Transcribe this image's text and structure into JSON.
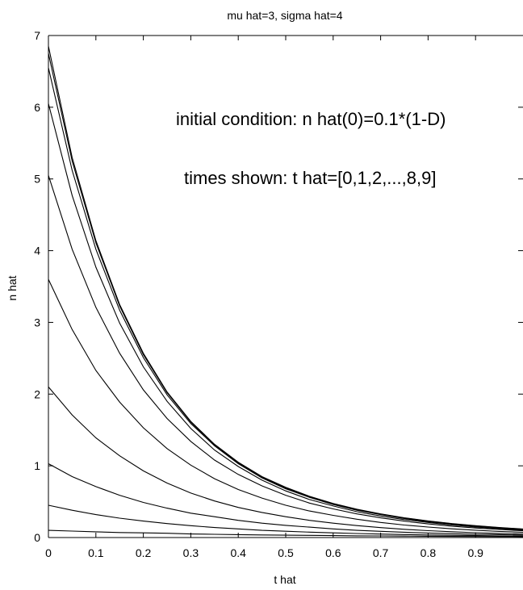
{
  "chart_data": {
    "type": "line",
    "title": "mu hat=3, sigma hat=4",
    "xlabel": "t hat",
    "ylabel": "n hat",
    "xlim": [
      0,
      1
    ],
    "ylim": [
      0,
      7
    ],
    "xticks": [
      "0",
      "0.1",
      "0.2",
      "0.3",
      "0.4",
      "0.5",
      "0.6",
      "0.7",
      "0.8",
      "0.9"
    ],
    "yticks": [
      "0",
      "1",
      "2",
      "3",
      "4",
      "5",
      "6",
      "7"
    ],
    "grid": false,
    "annotations": [
      "initial  condition: n hat(0)=0.1*(1-D)",
      "times shown: t hat=[0,1,2,...,8,9]"
    ],
    "x": [
      0,
      0.05,
      0.1,
      0.15,
      0.2,
      0.25,
      0.3,
      0.35,
      0.4,
      0.45,
      0.5,
      0.55,
      0.6,
      0.65,
      0.7,
      0.75,
      0.8,
      0.85,
      0.9,
      0.95,
      1.0
    ],
    "series": [
      {
        "values": [
          0.1,
          0.09,
          0.08,
          0.07,
          0.065,
          0.06,
          0.05,
          0.045,
          0.04,
          0.036,
          0.033,
          0.03,
          0.027,
          0.024,
          0.022,
          0.02,
          0.018,
          0.016,
          0.015,
          0.013,
          0.012
        ]
      },
      {
        "values": [
          0.45,
          0.38,
          0.32,
          0.27,
          0.23,
          0.195,
          0.165,
          0.14,
          0.12,
          0.1,
          0.088,
          0.075,
          0.065,
          0.056,
          0.048,
          0.042,
          0.036,
          0.031,
          0.027,
          0.023,
          0.02
        ]
      },
      {
        "values": [
          1.03,
          0.85,
          0.71,
          0.59,
          0.49,
          0.41,
          0.34,
          0.29,
          0.24,
          0.2,
          0.17,
          0.145,
          0.12,
          0.1,
          0.087,
          0.074,
          0.063,
          0.054,
          0.046,
          0.04,
          0.034
        ]
      },
      {
        "values": [
          2.1,
          1.71,
          1.39,
          1.14,
          0.93,
          0.76,
          0.62,
          0.51,
          0.42,
          0.35,
          0.29,
          0.24,
          0.2,
          0.166,
          0.138,
          0.115,
          0.096,
          0.081,
          0.068,
          0.057,
          0.048
        ]
      },
      {
        "values": [
          3.6,
          2.9,
          2.33,
          1.89,
          1.53,
          1.24,
          1.01,
          0.82,
          0.67,
          0.55,
          0.45,
          0.37,
          0.31,
          0.255,
          0.21,
          0.175,
          0.146,
          0.122,
          0.102,
          0.086,
          0.072
        ]
      },
      {
        "values": [
          5.05,
          4.02,
          3.21,
          2.57,
          2.06,
          1.66,
          1.34,
          1.08,
          0.88,
          0.72,
          0.59,
          0.48,
          0.4,
          0.33,
          0.275,
          0.228,
          0.19,
          0.159,
          0.133,
          0.112,
          0.094
        ]
      },
      {
        "values": [
          6.05,
          4.77,
          3.77,
          2.99,
          2.38,
          1.9,
          1.52,
          1.22,
          0.99,
          0.8,
          0.65,
          0.53,
          0.44,
          0.36,
          0.3,
          0.25,
          0.21,
          0.175,
          0.147,
          0.124,
          0.104
        ]
      },
      {
        "values": [
          6.55,
          5.12,
          4.02,
          3.17,
          2.51,
          1.99,
          1.59,
          1.28,
          1.03,
          0.83,
          0.68,
          0.56,
          0.46,
          0.38,
          0.32,
          0.265,
          0.222,
          0.186,
          0.157,
          0.133,
          0.113
        ]
      },
      {
        "values": [
          6.75,
          5.25,
          4.11,
          3.23,
          2.55,
          2.02,
          1.61,
          1.29,
          1.04,
          0.84,
          0.69,
          0.57,
          0.47,
          0.39,
          0.325,
          0.272,
          0.228,
          0.192,
          0.162,
          0.137,
          0.116
        ]
      },
      {
        "values": [
          6.85,
          5.3,
          4.14,
          3.25,
          2.57,
          2.03,
          1.62,
          1.3,
          1.05,
          0.85,
          0.7,
          0.575,
          0.475,
          0.395,
          0.33,
          0.276,
          0.232,
          0.195,
          0.165,
          0.14,
          0.119
        ]
      }
    ]
  }
}
